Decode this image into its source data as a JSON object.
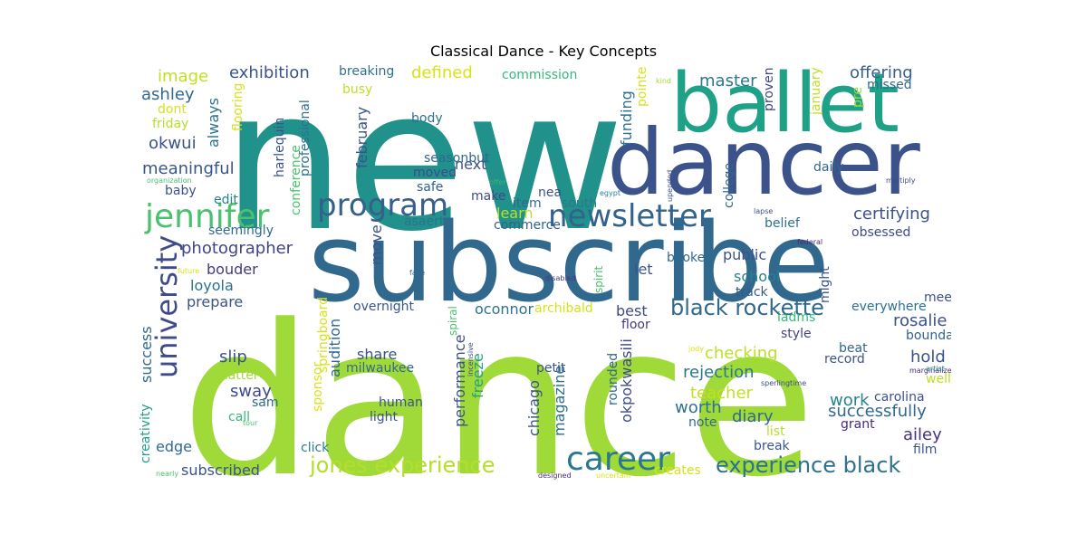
{
  "title": "Classical Dance - Key Concepts",
  "cloud": {
    "words": [
      {
        "text": "dance",
        "color": "#a0da39"
      },
      {
        "text": "new",
        "color": "#21918c"
      },
      {
        "text": "subscribe",
        "color": "#31688e"
      },
      {
        "text": "dancer",
        "color": "#3b528b"
      },
      {
        "text": "ballet",
        "color": "#1fa187"
      },
      {
        "text": "career",
        "color": "#2a788e"
      },
      {
        "text": "jennifer",
        "color": "#4ac16d"
      },
      {
        "text": "program",
        "color": "#355f8d"
      },
      {
        "text": "newsletter",
        "color": "#33638d"
      },
      {
        "text": "university",
        "color": "#3e4a89"
      },
      {
        "text": "jones experience",
        "color": "#b5de2b"
      },
      {
        "text": "experience black",
        "color": "#2c728e"
      },
      {
        "text": "black rockette",
        "color": "#31688e"
      },
      {
        "text": "photographer",
        "color": "#414487"
      },
      {
        "text": "meaningful",
        "color": "#39568c"
      },
      {
        "text": "exhibition",
        "color": "#3b528b"
      },
      {
        "text": "offering",
        "color": "#355f8d"
      },
      {
        "text": "master",
        "color": "#2a788e"
      },
      {
        "text": "successfully",
        "color": "#31688e"
      },
      {
        "text": "certifying",
        "color": "#3b528b"
      },
      {
        "text": "rejection",
        "color": "#2a788e"
      },
      {
        "text": "checking",
        "color": "#bddf26"
      },
      {
        "text": "teacher",
        "color": "#c2df23"
      },
      {
        "text": "rosalie",
        "color": "#3b528b"
      },
      {
        "text": "ailey",
        "color": "#46327e"
      },
      {
        "text": "hold",
        "color": "#3b528b"
      },
      {
        "text": "worth",
        "color": "#2c728e"
      },
      {
        "text": "diary",
        "color": "#31688e"
      },
      {
        "text": "work",
        "color": "#26828e"
      },
      {
        "text": "carolina",
        "color": "#3b528b"
      },
      {
        "text": "grant",
        "color": "#482878"
      },
      {
        "text": "film",
        "color": "#3b528b"
      },
      {
        "text": "break",
        "color": "#38588c"
      },
      {
        "text": "list",
        "color": "#b5de2b"
      },
      {
        "text": "note",
        "color": "#31688e"
      },
      {
        "text": "beat",
        "color": "#31688e"
      },
      {
        "text": "record",
        "color": "#3b528b"
      },
      {
        "text": "well",
        "color": "#bddf26"
      },
      {
        "text": "boundary",
        "color": "#33638d"
      },
      {
        "text": "everywhere",
        "color": "#2c728e"
      },
      {
        "text": "meet",
        "color": "#3b528b"
      },
      {
        "text": "style",
        "color": "#414487"
      },
      {
        "text": "iadms",
        "color": "#35b779"
      },
      {
        "text": "floor",
        "color": "#443983"
      },
      {
        "text": "best",
        "color": "#3e4a89"
      },
      {
        "text": "oconnor",
        "color": "#2c728e"
      },
      {
        "text": "overnight",
        "color": "#39568c"
      },
      {
        "text": "archibald",
        "color": "#d8e219"
      },
      {
        "text": "public",
        "color": "#3b528b"
      },
      {
        "text": "school",
        "color": "#26828e"
      },
      {
        "text": "track",
        "color": "#38588c"
      },
      {
        "text": "booked",
        "color": "#31688e"
      },
      {
        "text": "let",
        "color": "#3b528b"
      },
      {
        "text": "belief",
        "color": "#2c728e"
      },
      {
        "text": "obsessed",
        "color": "#3e4a89"
      },
      {
        "text": "learn",
        "color": "#bddf26"
      },
      {
        "text": "commerce",
        "color": "#355f8d"
      },
      {
        "text": "south",
        "color": "#2a788e"
      },
      {
        "text": "nea",
        "color": "#3b528b"
      },
      {
        "text": "item",
        "color": "#31688e"
      },
      {
        "text": "make",
        "color": "#3e4a89"
      },
      {
        "text": "asaerts",
        "color": "#2c728e"
      },
      {
        "text": "next",
        "color": "#3b528b"
      },
      {
        "text": "safe",
        "color": "#355f8d"
      },
      {
        "text": "moved",
        "color": "#3e4a89"
      },
      {
        "text": "seasonbut",
        "color": "#31688e"
      },
      {
        "text": "body",
        "color": "#2c728e"
      },
      {
        "text": "defined",
        "color": "#d8e219"
      },
      {
        "text": "breaking",
        "color": "#2c728e"
      },
      {
        "text": "busy",
        "color": "#bddf26"
      },
      {
        "text": "commission",
        "color": "#35b779"
      },
      {
        "text": "image",
        "color": "#c2df23"
      },
      {
        "text": "ashley",
        "color": "#31688e"
      },
      {
        "text": "okwui",
        "color": "#3b528b"
      },
      {
        "text": "always",
        "color": "#2c728e"
      },
      {
        "text": "dont",
        "color": "#d8e219"
      },
      {
        "text": "friday",
        "color": "#b5de2b"
      },
      {
        "text": "baby",
        "color": "#3b528b"
      },
      {
        "text": "edit",
        "color": "#26828e"
      },
      {
        "text": "seemingly",
        "color": "#31688e"
      },
      {
        "text": "bouder",
        "color": "#443983"
      },
      {
        "text": "loyola",
        "color": "#2c728e"
      },
      {
        "text": "prepare",
        "color": "#3b528b"
      },
      {
        "text": "success",
        "color": "#31688e"
      },
      {
        "text": "slip",
        "color": "#3b528b"
      },
      {
        "text": "sway",
        "color": "#3e4a89"
      },
      {
        "text": "matter",
        "color": "#a0da39"
      },
      {
        "text": "sam",
        "color": "#31688e"
      },
      {
        "text": "call",
        "color": "#35b779"
      },
      {
        "text": "creativity",
        "color": "#1fa187"
      },
      {
        "text": "edge",
        "color": "#31688e"
      },
      {
        "text": "subscribed",
        "color": "#3b528b"
      },
      {
        "text": "click",
        "color": "#26828e"
      },
      {
        "text": "share",
        "color": "#3b528b"
      },
      {
        "text": "milwaukee",
        "color": "#31688e"
      },
      {
        "text": "human",
        "color": "#3b528b"
      },
      {
        "text": "light",
        "color": "#3b528b"
      },
      {
        "text": "audition",
        "color": "#31688e"
      },
      {
        "text": "performance",
        "color": "#3b528b"
      },
      {
        "text": "freeze",
        "color": "#1fa187"
      },
      {
        "text": "chicago",
        "color": "#3b528b"
      },
      {
        "text": "magazine",
        "color": "#2c728e"
      },
      {
        "text": "okpokwasili",
        "color": "#3e4a89"
      },
      {
        "text": "rounded",
        "color": "#31688e"
      },
      {
        "text": "petit",
        "color": "#3b528b"
      },
      {
        "text": "move",
        "color": "#3b528b"
      },
      {
        "text": "february",
        "color": "#3b528b"
      },
      {
        "text": "funding",
        "color": "#2c728e"
      },
      {
        "text": "college",
        "color": "#31688e"
      },
      {
        "text": "proven",
        "color": "#3e4a89"
      },
      {
        "text": "january",
        "color": "#c2df23"
      },
      {
        "text": "daily",
        "color": "#31688e"
      },
      {
        "text": "missed",
        "color": "#31688e"
      },
      {
        "text": "pre",
        "color": "#a0da39"
      },
      {
        "text": "retailer",
        "color": "#d8e219"
      },
      {
        "text": "might",
        "color": "#3b528b"
      },
      {
        "text": "pointe",
        "color": "#d8e219"
      },
      {
        "text": "harlequin",
        "color": "#3b528b"
      },
      {
        "text": "conference",
        "color": "#4ac16d"
      },
      {
        "text": "professional",
        "color": "#2c728e"
      },
      {
        "text": "flooring",
        "color": "#d8e219"
      },
      {
        "text": "springboard",
        "color": "#d8e219"
      },
      {
        "text": "sponsor",
        "color": "#d8e219"
      },
      {
        "text": "spiral",
        "color": "#4ac16d"
      },
      {
        "text": "spirit",
        "color": "#4ac16d"
      },
      {
        "text": "creates",
        "color": "#d8e219"
      },
      {
        "text": "organization",
        "color": "#4ac16d"
      },
      {
        "text": "offer",
        "color": "#35b779"
      },
      {
        "text": "egypt",
        "color": "#26828e"
      },
      {
        "text": "upended",
        "color": "#3b528b"
      },
      {
        "text": "multiply",
        "color": "#3e4a89"
      },
      {
        "text": "kind",
        "color": "#a0da39"
      },
      {
        "text": "lapse",
        "color": "#3e4a89"
      },
      {
        "text": "federal",
        "color": "#482878"
      },
      {
        "text": "future",
        "color": "#d8e219"
      },
      {
        "text": "face",
        "color": "#31688e"
      },
      {
        "text": "disabled",
        "color": "#443983"
      },
      {
        "text": "incensive",
        "color": "#3e4a89"
      },
      {
        "text": "sperlingtime",
        "color": "#3e4a89"
      },
      {
        "text": "marginalized",
        "color": "#482878"
      },
      {
        "text": "artist",
        "color": "#26828e"
      },
      {
        "text": "jody",
        "color": "#d8e219"
      },
      {
        "text": "tour",
        "color": "#4ac16d"
      },
      {
        "text": "nearly",
        "color": "#4ac16d"
      },
      {
        "text": "designed",
        "color": "#482878"
      },
      {
        "text": "uncertain",
        "color": "#d8e219"
      }
    ]
  }
}
